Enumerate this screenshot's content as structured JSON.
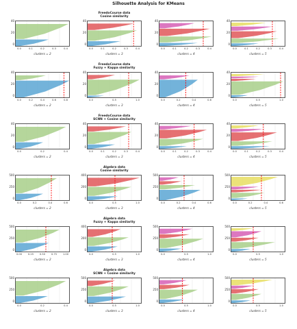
{
  "figure_title": "Silhouette Analysis for KMeans",
  "colors": {
    "c0": "#5aa6d3",
    "c1": "#a8cf8a",
    "c2": "#e15759",
    "c3": "#d65fb5",
    "c4": "#e8de62",
    "avg": "#ff0000",
    "grid": "#dddddd"
  },
  "chart_data": [
    {
      "type": "silhouette",
      "row_title": [
        "FreedoCourse data",
        "Cosine similarity"
      ],
      "panels": [
        {
          "caption": "clusters = 2",
          "avg": 0.5,
          "xmin": 0.0,
          "xmax": 0.5,
          "yticks": [
            "40",
            "20",
            "0"
          ],
          "xticks": [
            "0.0",
            "0.1",
            "0.2",
            "0.3",
            "0.4"
          ],
          "clusters": [
            {
              "c": "c0",
              "size": 0.3,
              "max": 0.3
            },
            {
              "c": "c1",
              "size": 0.7,
              "max": 0.48
            }
          ]
        },
        {
          "caption": "clusters = 3",
          "avg": 0.42,
          "xmin": 0.0,
          "xmax": 0.5,
          "yticks": [
            "40",
            "20",
            "0"
          ],
          "xticks": [
            "0.0",
            "0.1",
            "0.2",
            "0.3",
            "0.4"
          ],
          "clusters": [
            {
              "c": "c0",
              "size": 0.22,
              "max": 0.3
            },
            {
              "c": "c1",
              "size": 0.48,
              "max": 0.45
            },
            {
              "c": "c2",
              "size": 0.3,
              "max": 0.42
            }
          ]
        },
        {
          "caption": "clusters = 4",
          "avg": 0.4,
          "xmin": 0.0,
          "xmax": 0.5,
          "yticks": [
            "40",
            "20",
            "0"
          ],
          "xticks": [
            "0.0",
            "0.1",
            "0.2",
            "0.3",
            "0.4"
          ],
          "clusters": [
            {
              "c": "c0",
              "size": 0.14,
              "max": 0.35
            },
            {
              "c": "c1",
              "size": 0.28,
              "max": 0.48
            },
            {
              "c": "c2",
              "size": 0.34,
              "max": 0.46
            },
            {
              "c": "c3",
              "size": 0.24,
              "max": 0.32
            }
          ]
        },
        {
          "caption": "clusters = 5",
          "avg": 0.45,
          "xmin": 0.0,
          "xmax": 0.6,
          "yticks": [
            "40",
            "20",
            "0"
          ],
          "xticks": [
            "0.0",
            "0.1",
            "0.2",
            "0.3",
            "0.4"
          ],
          "clusters": [
            {
              "c": "c0",
              "size": 0.12,
              "max": 0.3
            },
            {
              "c": "c1",
              "size": 0.2,
              "max": 0.52
            },
            {
              "c": "c2",
              "size": 0.32,
              "max": 0.5
            },
            {
              "c": "c3",
              "size": 0.2,
              "max": 0.45
            },
            {
              "c": "c4",
              "size": 0.16,
              "max": 0.38
            }
          ]
        }
      ]
    },
    {
      "type": "silhouette",
      "row_title": [
        "FreedoCourse data",
        "Fuzzy + Kappa similarity"
      ],
      "panels": [
        {
          "caption": "clusters = 2",
          "avg": 0.88,
          "xmin": 0.0,
          "xmax": 1.0,
          "yticks": [
            "40",
            "20",
            "0"
          ],
          "xticks": [
            "0.0",
            "0.2",
            "0.4",
            "0.6",
            "0.8"
          ],
          "clusters": [
            {
              "c": "c0",
              "size": 0.78,
              "max": 0.98
            },
            {
              "c": "c1",
              "size": 0.22,
              "max": 0.55
            }
          ]
        },
        {
          "caption": "clusters = 3",
          "avg": 0.75,
          "xmin": 0.0,
          "xmax": 1.0,
          "yticks": [
            "40",
            "20",
            "0"
          ],
          "xticks": [
            "0.0",
            "0.5",
            "1.0"
          ],
          "clusters": [
            {
              "c": "c0",
              "size": 0.08,
              "max": 0.3
            },
            {
              "c": "c1",
              "size": 0.72,
              "max": 0.95
            },
            {
              "c": "c2",
              "size": 0.2,
              "max": 0.5
            }
          ]
        },
        {
          "caption": "clusters = 4",
          "avg": 0.48,
          "xmin": 0.0,
          "xmax": 1.0,
          "yticks": [
            "40",
            "20",
            "0"
          ],
          "xticks": [
            "0.0",
            "0.2",
            "0.4",
            "0.6"
          ],
          "clusters": [
            {
              "c": "c0",
              "size": 0.82,
              "max": 0.7
            },
            {
              "c": "c3",
              "size": 0.18,
              "max": 0.55
            }
          ]
        },
        {
          "caption": "clusters = 5",
          "avg": 0.9,
          "xmin": 0.0,
          "xmax": 1.0,
          "yticks": [
            "40",
            "20",
            "0"
          ],
          "xticks": [
            "0.0",
            "0.5",
            "1.0"
          ],
          "clusters": [
            {
              "c": "c0",
              "size": 0.1,
              "max": 0.3
            },
            {
              "c": "c1",
              "size": 0.62,
              "max": 0.95
            },
            {
              "c": "c2",
              "size": 0.1,
              "max": 0.45
            },
            {
              "c": "c3",
              "size": 0.08,
              "max": 0.5
            },
            {
              "c": "c4",
              "size": 0.1,
              "max": 0.6
            }
          ]
        }
      ]
    },
    {
      "type": "silhouette",
      "row_title": [
        "FreedoCourse data",
        "SCNN + Cosine similarity"
      ],
      "panels": [
        {
          "caption": "clusters = 2",
          "avg": 0.6,
          "xmin": 0.0,
          "xmax": 0.6,
          "yticks": [
            "40",
            "20",
            "0"
          ],
          "xticks": [
            "0.0",
            "0.2",
            "0.4"
          ],
          "clusters": [
            {
              "c": "c0",
              "size": 0.3,
              "max": 0.3
            },
            {
              "c": "c1",
              "size": 0.7,
              "max": 0.55
            }
          ]
        },
        {
          "caption": "clusters = 3",
          "avg": 0.45,
          "xmin": 0.0,
          "xmax": 0.6,
          "yticks": [
            "40",
            "20",
            "0"
          ],
          "xticks": [
            "0.0",
            "0.1",
            "0.2",
            "0.3",
            "0.4"
          ],
          "clusters": [
            {
              "c": "c0",
              "size": 0.2,
              "max": 0.3
            },
            {
              "c": "c1",
              "size": 0.56,
              "max": 0.48
            },
            {
              "c": "c2",
              "size": 0.24,
              "max": 0.42
            }
          ]
        },
        {
          "caption": "clusters = 4",
          "avg": 0.38,
          "xmin": 0.0,
          "xmax": 0.6,
          "yticks": [
            "40",
            "20",
            "0"
          ],
          "xticks": [
            "0.0",
            "0.1",
            "0.2",
            "0.3",
            "0.4"
          ],
          "clusters": [
            {
              "c": "c0",
              "size": 0.12,
              "max": 0.3
            },
            {
              "c": "c1",
              "size": 0.32,
              "max": 0.48
            },
            {
              "c": "c2",
              "size": 0.4,
              "max": 0.52
            },
            {
              "c": "c3",
              "size": 0.16,
              "max": 0.35
            }
          ]
        },
        {
          "caption": "clusters = 5",
          "avg": 0.35,
          "xmin": 0.0,
          "xmax": 0.6,
          "yticks": [
            "40",
            "20",
            "0"
          ],
          "xticks": [
            "0.0",
            "0.1",
            "0.2",
            "0.3",
            "0.4"
          ],
          "clusters": [
            {
              "c": "c0",
              "size": 0.12,
              "max": 0.42
            },
            {
              "c": "c1",
              "size": 0.2,
              "max": 0.45
            },
            {
              "c": "c2",
              "size": 0.4,
              "max": 0.5
            },
            {
              "c": "c3",
              "size": 0.14,
              "max": 0.35
            },
            {
              "c": "c4",
              "size": 0.14,
              "max": 0.3
            }
          ]
        }
      ]
    },
    {
      "type": "silhouette",
      "row_title": [
        "Algebra data",
        "Cosine similarity"
      ],
      "panels": [
        {
          "caption": "clusters = 2",
          "avg": 0.65,
          "xmin": 0.0,
          "xmax": 1.0,
          "yticks": [
            "500",
            "250",
            "0"
          ],
          "xticks": [
            "0.0",
            "0.2",
            "0.4",
            "0.6"
          ],
          "clusters": [
            {
              "c": "c0",
              "size": 0.3,
              "max": 0.5
            },
            {
              "c": "c1",
              "size": 0.7,
              "max": 0.75
            }
          ]
        },
        {
          "caption": "clusters = 3",
          "avg": 0.5,
          "xmin": 0.0,
          "xmax": 1.0,
          "yticks": [
            "400",
            "200",
            "0"
          ],
          "xticks": [
            "0.0",
            "0.5",
            "1.0"
          ],
          "clusters": [
            {
              "c": "c0",
              "size": 0.18,
              "max": 0.55
            },
            {
              "c": "c1",
              "size": 0.42,
              "max": 0.8
            },
            {
              "c": "c2",
              "size": 0.4,
              "max": 0.95
            }
          ]
        },
        {
          "caption": "clusters = 4",
          "avg": 0.45,
          "xmin": 0.0,
          "xmax": 1.0,
          "yticks": [
            "500",
            "250",
            "0"
          ],
          "xticks": [
            "0.0",
            "0.2",
            "0.4",
            "0.6"
          ],
          "clusters": [
            {
              "c": "c0",
              "size": 0.48,
              "max": 0.75
            },
            {
              "c": "c1",
              "size": 0.2,
              "max": 0.65
            },
            {
              "c": "c2",
              "size": 0.16,
              "max": 0.4
            },
            {
              "c": "c3",
              "size": 0.16,
              "max": 0.35
            }
          ]
        },
        {
          "caption": "clusters = 5",
          "avg": 0.55,
          "xmin": 0.0,
          "xmax": 1.0,
          "yticks": [
            "500",
            "250",
            "0"
          ],
          "xticks": [
            "0.0",
            "0.2",
            "0.4",
            "0.6"
          ],
          "clusters": [
            {
              "c": "c0",
              "size": 0.08,
              "max": 0.3
            },
            {
              "c": "c1",
              "size": 0.24,
              "max": 0.6
            },
            {
              "c": "c2",
              "size": 0.12,
              "max": 0.55
            },
            {
              "c": "c3",
              "size": 0.12,
              "max": 0.5
            },
            {
              "c": "c4",
              "size": 0.44,
              "max": 0.85
            }
          ]
        }
      ]
    },
    {
      "type": "silhouette",
      "row_title": [
        "Algebra data",
        "Fuzzy + Kappa similarity"
      ],
      "panels": [
        {
          "caption": "clusters = 2",
          "avg": 0.55,
          "xmin": 0.0,
          "xmax": 1.0,
          "yticks": [
            "500",
            "250",
            "0"
          ],
          "xticks": [
            "0.00",
            "0.25",
            "0.50",
            "0.75",
            "1.00"
          ],
          "clusters": [
            {
              "c": "c0",
              "size": 0.4,
              "max": 0.6
            },
            {
              "c": "c1",
              "size": 0.6,
              "max": 0.8
            }
          ]
        },
        {
          "caption": "clusters = 3",
          "avg": 0.45,
          "xmin": 0.0,
          "xmax": 1.0,
          "yticks": [
            "400",
            "200",
            "0"
          ],
          "xticks": [
            "0.0",
            "0.5",
            "1.0"
          ],
          "clusters": [
            {
              "c": "c0",
              "size": 0.24,
              "max": 0.55
            },
            {
              "c": "c1",
              "size": 0.4,
              "max": 0.75
            },
            {
              "c": "c2",
              "size": 0.36,
              "max": 0.6
            }
          ]
        },
        {
          "caption": "clusters = 4",
          "avg": 0.42,
          "xmin": 0.0,
          "xmax": 1.0,
          "yticks": [
            "500",
            "250",
            "0"
          ],
          "xticks": [
            "0.0",
            "0.5",
            "1.0"
          ],
          "clusters": [
            {
              "c": "c0",
              "size": 0.14,
              "max": 0.4
            },
            {
              "c": "c1",
              "size": 0.44,
              "max": 0.8
            },
            {
              "c": "c2",
              "size": 0.18,
              "max": 0.55
            },
            {
              "c": "c3",
              "size": 0.24,
              "max": 0.6
            }
          ]
        },
        {
          "caption": "clusters = 5",
          "avg": 0.4,
          "xmin": 0.0,
          "xmax": 1.0,
          "yticks": [
            "500",
            "250",
            "0"
          ],
          "xticks": [
            "0.0",
            "0.5",
            "1.0"
          ],
          "clusters": [
            {
              "c": "c0",
              "size": 0.12,
              "max": 0.35
            },
            {
              "c": "c1",
              "size": 0.3,
              "max": 0.8
            },
            {
              "c": "c2",
              "size": 0.18,
              "max": 0.5
            },
            {
              "c": "c3",
              "size": 0.28,
              "max": 0.55
            },
            {
              "c": "c4",
              "size": 0.12,
              "max": 0.4
            }
          ]
        }
      ]
    },
    {
      "type": "silhouette",
      "row_title": [
        "Algebra data",
        "SCNN + Cosine similarity"
      ],
      "panels": [
        {
          "caption": "clusters = 2",
          "avg": 0.6,
          "xmin": 0.0,
          "xmax": 0.6,
          "yticks": [
            "500",
            "250",
            "0"
          ],
          "xticks": [
            "0.0",
            "0.2",
            "0.4"
          ],
          "clusters": [
            {
              "c": "c0",
              "size": 0.32,
              "max": 0.35
            },
            {
              "c": "c1",
              "size": 0.68,
              "max": 0.55
            }
          ]
        },
        {
          "caption": "clusters = 3",
          "avg": 0.45,
          "xmin": 0.0,
          "xmax": 1.0,
          "yticks": [
            "500",
            "250",
            "0"
          ],
          "xticks": [
            "0.0",
            "0.5",
            "1.0"
          ],
          "clusters": [
            {
              "c": "c0",
              "size": 0.3,
              "max": 0.7
            },
            {
              "c": "c1",
              "size": 0.45,
              "max": 0.75
            },
            {
              "c": "c2",
              "size": 0.25,
              "max": 0.5
            }
          ]
        },
        {
          "caption": "clusters = 4",
          "avg": 0.42,
          "xmin": 0.0,
          "xmax": 1.0,
          "yticks": [
            "500",
            "250",
            "0"
          ],
          "xticks": [
            "0.0",
            "0.5",
            "1.0"
          ],
          "clusters": [
            {
              "c": "c0",
              "size": 0.16,
              "max": 0.45
            },
            {
              "c": "c1",
              "size": 0.44,
              "max": 0.7
            },
            {
              "c": "c2",
              "size": 0.2,
              "max": 0.55
            },
            {
              "c": "c3",
              "size": 0.2,
              "max": 0.5
            }
          ]
        },
        {
          "caption": "clusters = 5",
          "avg": 0.4,
          "xmin": 0.0,
          "xmax": 1.0,
          "yticks": [
            "500",
            "250",
            "0"
          ],
          "xticks": [
            "0.0",
            "0.5",
            "1.0"
          ],
          "clusters": [
            {
              "c": "c0",
              "size": 0.12,
              "max": 0.35
            },
            {
              "c": "c1",
              "size": 0.28,
              "max": 0.55
            },
            {
              "c": "c2",
              "size": 0.2,
              "max": 0.5
            },
            {
              "c": "c3",
              "size": 0.14,
              "max": 0.4
            },
            {
              "c": "c4",
              "size": 0.26,
              "max": 0.75
            }
          ]
        }
      ]
    }
  ]
}
